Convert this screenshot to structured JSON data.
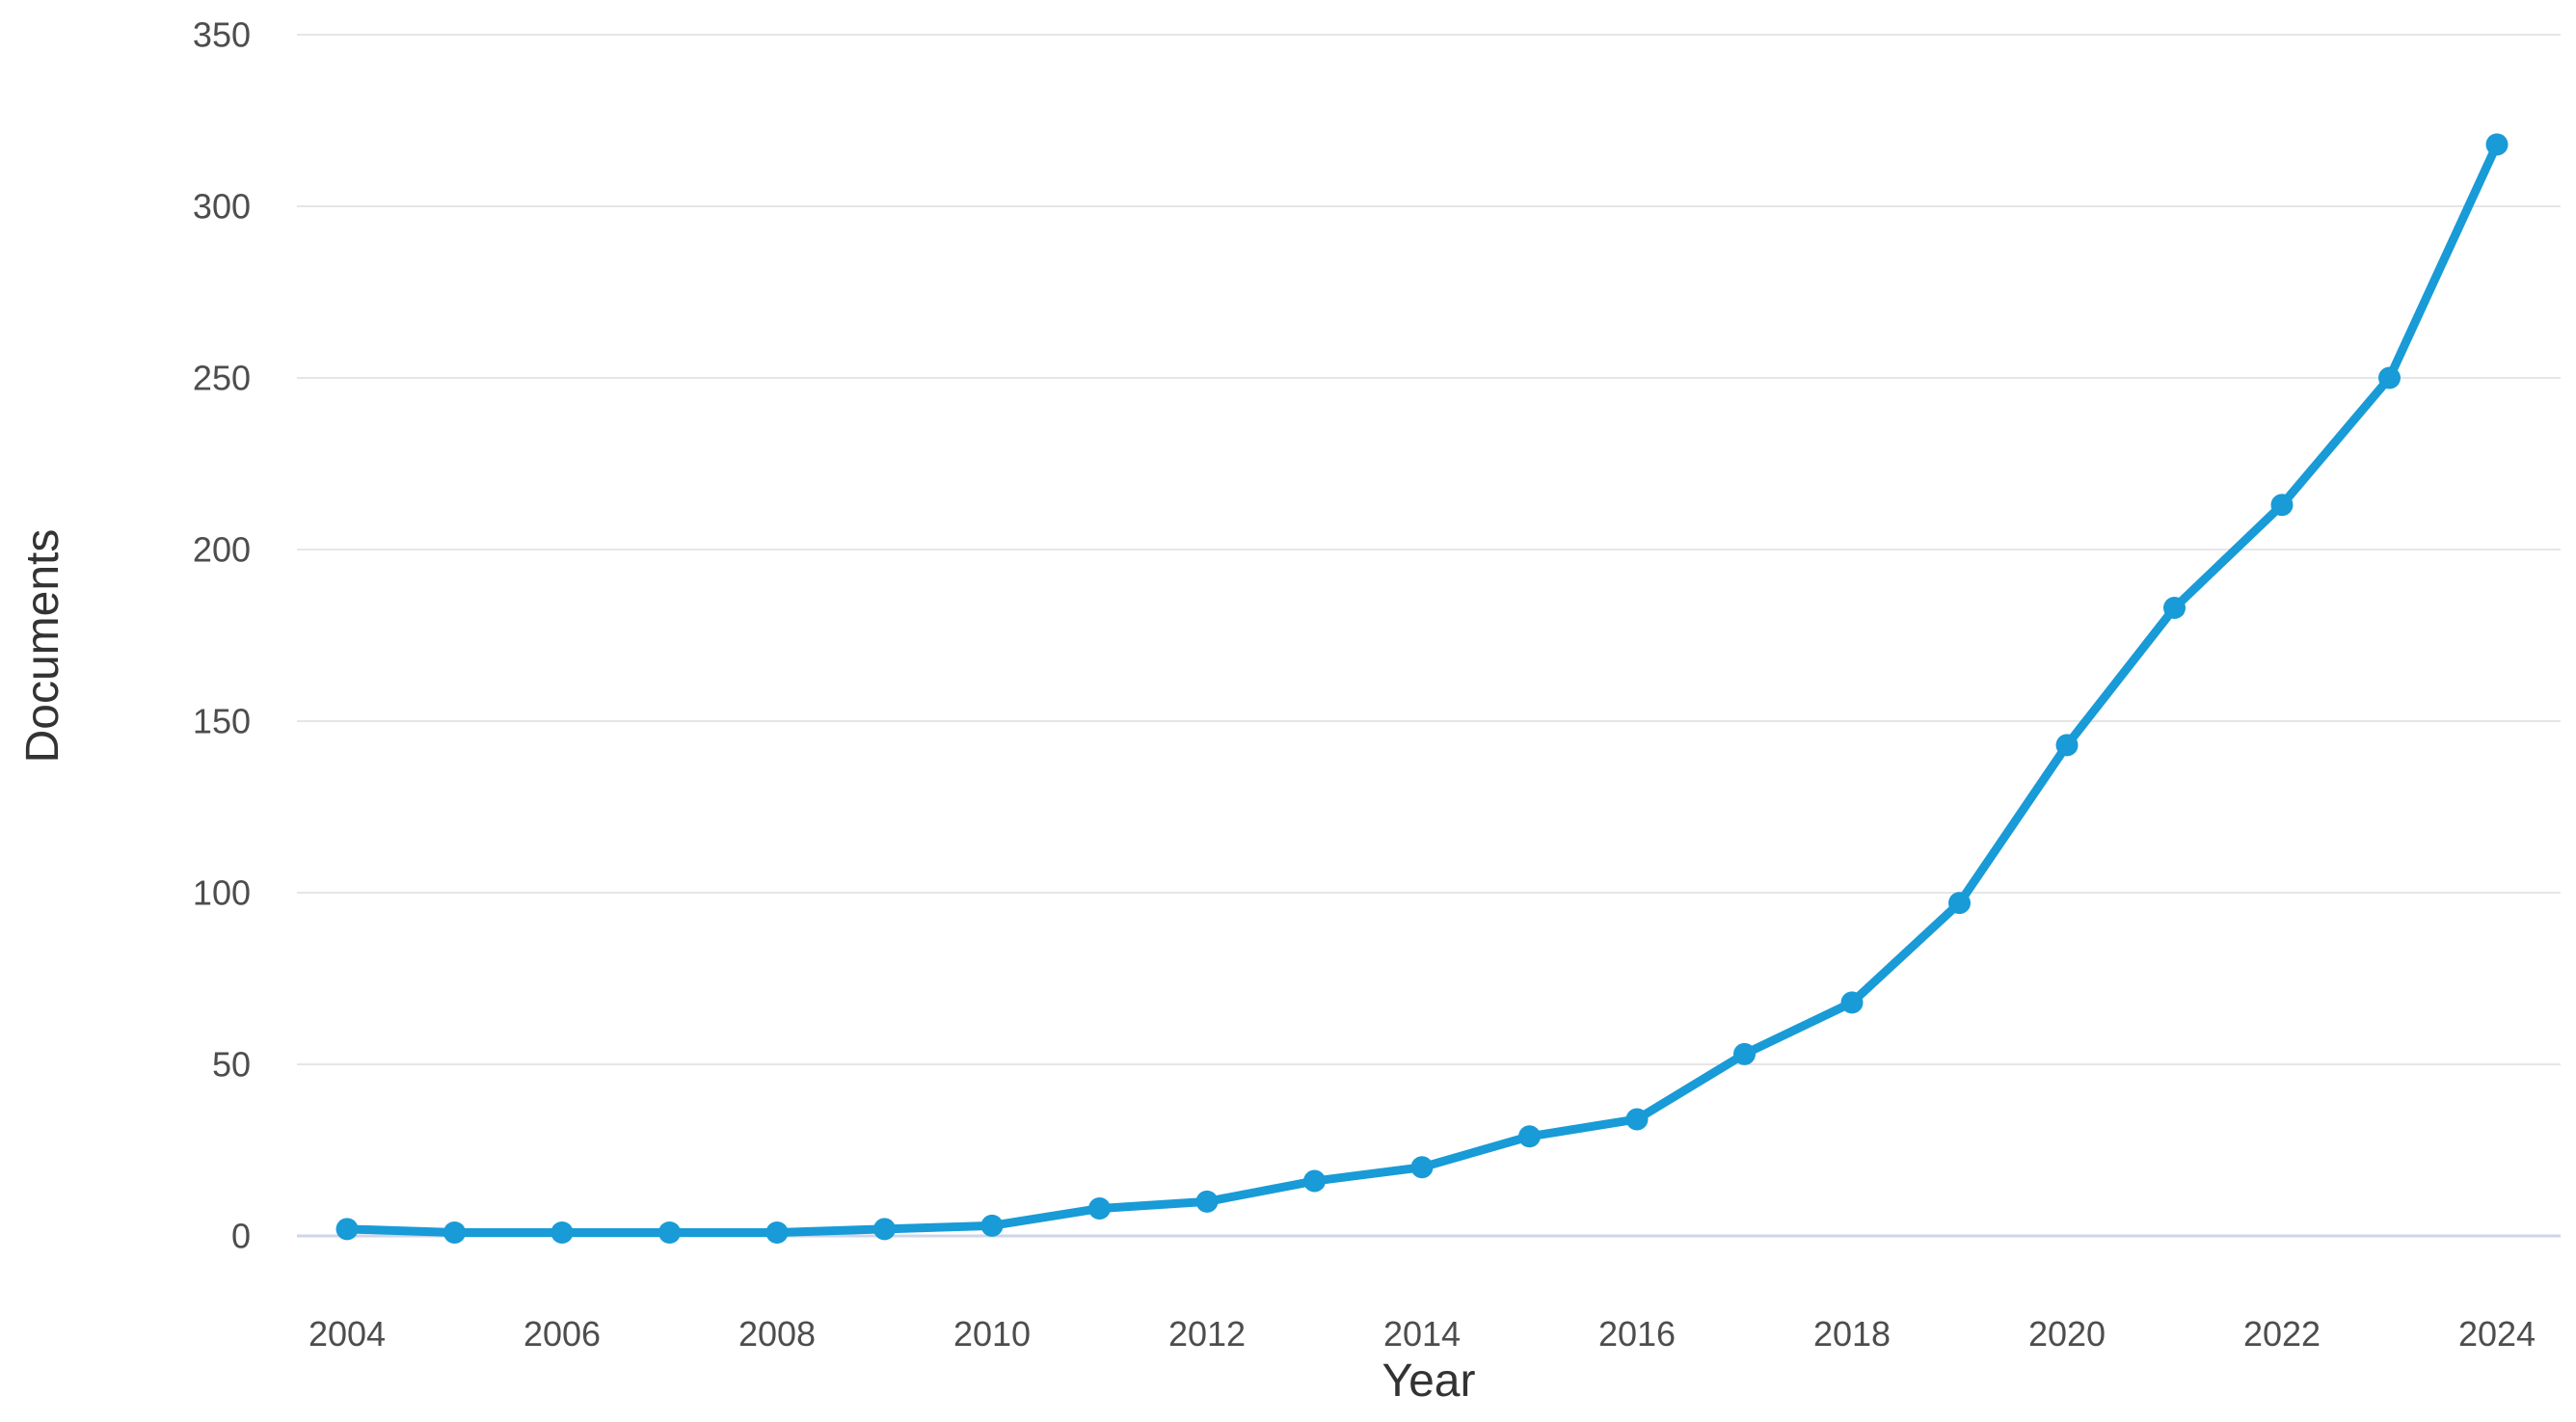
{
  "chart_data": {
    "type": "line",
    "title": "",
    "xlabel": "Year",
    "ylabel": "Documents",
    "x": [
      2004,
      2005,
      2006,
      2007,
      2008,
      2009,
      2010,
      2011,
      2012,
      2013,
      2014,
      2015,
      2016,
      2017,
      2018,
      2019,
      2020,
      2021,
      2022,
      2023,
      2024
    ],
    "series": [
      {
        "name": "Documents",
        "values": [
          2,
          1,
          1,
          1,
          1,
          2,
          3,
          8,
          10,
          16,
          20,
          29,
          34,
          53,
          68,
          97,
          143,
          183,
          213,
          250,
          318
        ]
      }
    ],
    "ylim": [
      0,
      350
    ],
    "yticks": [
      0,
      50,
      100,
      150,
      200,
      250,
      300,
      350
    ],
    "xtick_labels": [
      "2004",
      "2006",
      "2008",
      "2010",
      "2012",
      "2014",
      "2016",
      "2018",
      "2020",
      "2022",
      "2024"
    ],
    "grid": true,
    "legend_position": "none",
    "line_color": "#189bd7",
    "marker_color": "#189bd7",
    "grid_color": "#e6e6e6",
    "zero_line_color": "#ccd6eb",
    "tick_label_color": "#4d4d4d",
    "axis_title_color": "#333333"
  }
}
